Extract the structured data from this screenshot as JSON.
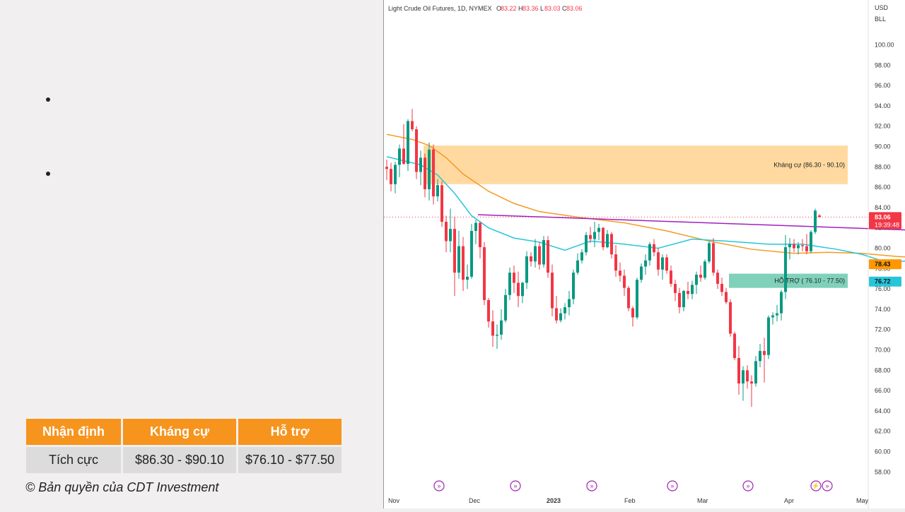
{
  "slide": {
    "table": {
      "headers": [
        "Nhận định",
        "Kháng cự",
        "Hỗ trợ"
      ],
      "row": [
        "Tích cực",
        "$86.30 - $90.10",
        "$76.10 - $77.50"
      ]
    },
    "copyright": "© Bản quyền của CDT Investment"
  },
  "chart_data": {
    "type": "candlestick",
    "title": "Light Crude Oil Futures, 1D, NYMEX",
    "ohlc_label": {
      "o": "O",
      "o_val": "83.22",
      "h": "H",
      "h_val": "83.36",
      "l": "L",
      "l_val": "83.03",
      "c": "C",
      "c_val": "83.06"
    },
    "currency": "USD",
    "unit": "BLL",
    "ylim": [
      56.5,
      103
    ],
    "y_ticks": [
      "58.00",
      "60.00",
      "62.00",
      "64.00",
      "66.00",
      "68.00",
      "70.00",
      "72.00",
      "74.00",
      "76.00",
      "78.00",
      "80.00",
      "82.00",
      "84.00",
      "86.00",
      "88.00",
      "90.00",
      "92.00",
      "94.00",
      "96.00",
      "98.00",
      "100.00"
    ],
    "x_labels": [
      "Nov",
      "Dec",
      "2023",
      "Feb",
      "Mar",
      "Apr",
      "May"
    ],
    "zones": [
      {
        "label": "Kháng cự (86.30 - 90.10)",
        "low": 86.3,
        "high": 90.1,
        "color": "#ffd9a0"
      },
      {
        "label": "HỖ TRỢ ( 76.10 - 77.50)",
        "low": 76.1,
        "high": 77.5,
        "color": "#7fd1b9"
      }
    ],
    "price_tags": [
      {
        "value": "83.06",
        "sub": "19:39:48",
        "level": 83.06,
        "color": "#f23645"
      },
      {
        "value": "78.43",
        "level": 78.43,
        "color": "#ff9800"
      },
      {
        "value": "76.72",
        "level": 76.72,
        "color": "#26c6da"
      }
    ],
    "trendline": {
      "color": "#a020c0",
      "points": [
        [
          18,
          83.3
        ],
        [
          156,
          81.3
        ]
      ]
    },
    "ma_slow": {
      "color": "#f59a23",
      "points": [
        [
          0,
          91.2
        ],
        [
          6,
          90.7
        ],
        [
          10,
          90.1
        ],
        [
          14,
          88.9
        ],
        [
          18,
          87.3
        ],
        [
          24,
          85.6
        ],
        [
          30,
          84.4
        ],
        [
          36,
          83.6
        ],
        [
          46,
          83.0
        ],
        [
          56,
          82.5
        ],
        [
          66,
          81.7
        ],
        [
          76,
          80.7
        ],
        [
          86,
          79.9
        ],
        [
          96,
          79.5
        ],
        [
          104,
          79.6
        ],
        [
          112,
          79.5
        ],
        [
          120,
          79.2
        ],
        [
          128,
          79.0
        ],
        [
          134,
          78.3
        ],
        [
          140,
          77.6
        ],
        [
          146,
          77.4
        ],
        [
          152,
          77.8
        ],
        [
          156,
          78.1
        ],
        [
          160,
          78.43
        ]
      ]
    },
    "ma_fast": {
      "color": "#26c6da",
      "points": [
        [
          0,
          89.0
        ],
        [
          4,
          88.6
        ],
        [
          8,
          88.2
        ],
        [
          12,
          87.2
        ],
        [
          16,
          85.4
        ],
        [
          20,
          83.2
        ],
        [
          24,
          82.0
        ],
        [
          30,
          81.0
        ],
        [
          36,
          80.6
        ],
        [
          42,
          79.8
        ],
        [
          48,
          80.7
        ],
        [
          56,
          80.4
        ],
        [
          64,
          80.0
        ],
        [
          72,
          80.9
        ],
        [
          80,
          80.7
        ],
        [
          90,
          80.4
        ],
        [
          98,
          80.4
        ],
        [
          106,
          79.9
        ],
        [
          112,
          79.4
        ],
        [
          118,
          78.6
        ],
        [
          124,
          78.8
        ],
        [
          130,
          78.7
        ],
        [
          134,
          77.8
        ],
        [
          140,
          76.5
        ],
        [
          146,
          75.6
        ],
        [
          150,
          75.0
        ],
        [
          154,
          75.4
        ],
        [
          158,
          76.2
        ],
        [
          160,
          76.72
        ]
      ]
    },
    "candles": [
      [
        88.0,
        88.7,
        86.7,
        87.8
      ],
      [
        87.8,
        88.4,
        85.6,
        86.3
      ],
      [
        86.3,
        88.5,
        85.4,
        88.2
      ],
      [
        88.2,
        90.2,
        87.0,
        89.8
      ],
      [
        89.8,
        92.2,
        88.2,
        88.3
      ],
      [
        88.3,
        92.7,
        87.6,
        92.5
      ],
      [
        92.5,
        93.7,
        91.5,
        91.7
      ],
      [
        91.7,
        92.0,
        86.8,
        87.5
      ],
      [
        87.5,
        89.6,
        86.2,
        88.9
      ],
      [
        88.9,
        89.3,
        85.0,
        85.8
      ],
      [
        85.8,
        90.4,
        84.7,
        89.7
      ],
      [
        89.7,
        90.2,
        84.3,
        85.1
      ],
      [
        85.1,
        86.8,
        84.6,
        86.2
      ],
      [
        86.2,
        86.6,
        82.1,
        82.6
      ],
      [
        82.6,
        83.2,
        79.6,
        80.7
      ],
      [
        80.7,
        83.9,
        79.6,
        81.9
      ],
      [
        81.9,
        83.1,
        75.3,
        77.6
      ],
      [
        77.6,
        81.7,
        77.0,
        80.2
      ],
      [
        80.2,
        81.1,
        75.8,
        76.9
      ],
      [
        76.9,
        78.4,
        76.0,
        77.2
      ],
      [
        77.2,
        82.4,
        77.0,
        81.7
      ],
      [
        81.7,
        82.8,
        80.4,
        82.5
      ],
      [
        82.5,
        82.6,
        79.0,
        80.1
      ],
      [
        80.1,
        80.6,
        74.4,
        74.9
      ],
      [
        74.9,
        75.1,
        72.2,
        72.8
      ],
      [
        72.8,
        73.9,
        70.3,
        71.4
      ],
      [
        71.4,
        72.5,
        70.1,
        71.5
      ],
      [
        71.5,
        74.0,
        71.0,
        72.9
      ],
      [
        72.9,
        76.0,
        72.7,
        75.4
      ],
      [
        75.4,
        78.1,
        74.9,
        77.6
      ],
      [
        77.6,
        78.3,
        75.6,
        76.6
      ],
      [
        76.6,
        77.7,
        74.2,
        75.3
      ],
      [
        75.3,
        76.7,
        74.6,
        76.6
      ],
      [
        76.6,
        79.7,
        76.0,
        79.2
      ],
      [
        79.2,
        79.6,
        78.2,
        78.7
      ],
      [
        78.7,
        80.9,
        78.1,
        80.2
      ],
      [
        80.2,
        80.6,
        77.9,
        78.4
      ],
      [
        78.4,
        81.2,
        78.1,
        80.8
      ],
      [
        80.8,
        81.2,
        77.1,
        77.6
      ],
      [
        77.6,
        78.4,
        73.3,
        74.1
      ],
      [
        74.1,
        75.3,
        72.6,
        72.9
      ],
      [
        72.9,
        74.1,
        72.7,
        73.6
      ],
      [
        73.6,
        74.6,
        73.0,
        74.2
      ],
      [
        74.2,
        75.8,
        73.4,
        75.0
      ],
      [
        75.0,
        77.9,
        74.5,
        77.6
      ],
      [
        77.6,
        79.5,
        77.4,
        78.8
      ],
      [
        78.8,
        79.9,
        78.5,
        79.6
      ],
      [
        79.6,
        81.6,
        79.3,
        81.3
      ],
      [
        81.3,
        82.1,
        80.5,
        80.9
      ],
      [
        80.9,
        82.6,
        80.1,
        81.6
      ],
      [
        81.6,
        82.4,
        80.8,
        82.0
      ],
      [
        82.0,
        82.1,
        79.8,
        80.1
      ],
      [
        80.1,
        81.8,
        80.0,
        81.4
      ],
      [
        81.4,
        81.6,
        79.0,
        79.4
      ],
      [
        79.4,
        80.3,
        77.2,
        77.8
      ],
      [
        77.8,
        78.6,
        76.7,
        77.3
      ],
      [
        77.3,
        77.9,
        75.3,
        76.1
      ],
      [
        76.1,
        76.3,
        73.8,
        74.1
      ],
      [
        74.1,
        74.3,
        72.3,
        73.2
      ],
      [
        73.2,
        77.1,
        73.0,
        76.9
      ],
      [
        76.9,
        78.5,
        76.6,
        78.2
      ],
      [
        78.2,
        79.4,
        77.4,
        78.8
      ],
      [
        78.8,
        80.6,
        78.3,
        80.4
      ],
      [
        80.4,
        80.9,
        79.2,
        79.6
      ],
      [
        79.6,
        80.0,
        77.3,
        77.9
      ],
      [
        77.9,
        79.4,
        76.9,
        79.1
      ],
      [
        79.1,
        79.4,
        77.5,
        77.8
      ],
      [
        77.8,
        78.3,
        76.2,
        76.5
      ],
      [
        76.5,
        76.9,
        74.8,
        75.6
      ],
      [
        75.6,
        76.1,
        73.6,
        74.2
      ],
      [
        74.2,
        75.9,
        73.8,
        75.8
      ],
      [
        75.8,
        76.7,
        75.0,
        75.5
      ],
      [
        75.5,
        76.8,
        75.0,
        76.4
      ],
      [
        76.4,
        77.7,
        75.5,
        77.4
      ],
      [
        77.4,
        78.3,
        76.7,
        77.1
      ],
      [
        77.1,
        78.9,
        76.9,
        78.7
      ],
      [
        78.7,
        80.7,
        78.5,
        80.5
      ],
      [
        80.5,
        81.0,
        77.3,
        77.6
      ],
      [
        77.6,
        77.9,
        76.0,
        76.5
      ],
      [
        76.5,
        77.1,
        75.3,
        75.7
      ],
      [
        75.7,
        76.1,
        74.5,
        74.7
      ],
      [
        74.7,
        75.0,
        71.3,
        71.6
      ],
      [
        71.6,
        71.8,
        69.0,
        69.2
      ],
      [
        69.2,
        70.4,
        65.6,
        66.7
      ],
      [
        66.7,
        68.4,
        65.0,
        68.0
      ],
      [
        68.0,
        68.5,
        66.2,
        66.9
      ],
      [
        66.9,
        67.5,
        64.4,
        66.7
      ],
      [
        66.7,
        69.4,
        66.4,
        68.9
      ],
      [
        68.9,
        70.6,
        68.3,
        69.9
      ],
      [
        69.9,
        71.2,
        66.8,
        69.5
      ],
      [
        69.5,
        73.4,
        69.1,
        73.2
      ],
      [
        73.2,
        73.7,
        72.5,
        73.4
      ],
      [
        73.4,
        74.4,
        72.8,
        73.6
      ],
      [
        73.6,
        75.9,
        72.9,
        75.7
      ],
      [
        75.7,
        81.3,
        75.0,
        80.1
      ],
      [
        80.1,
        81.0,
        78.9,
        80.4
      ],
      [
        80.4,
        80.9,
        79.6,
        80.0
      ],
      [
        80.0,
        80.6,
        79.4,
        80.3
      ],
      [
        80.3,
        80.9,
        79.7,
        80.2
      ],
      [
        80.2,
        81.4,
        79.4,
        79.7
      ],
      [
        79.7,
        81.8,
        79.5,
        81.6
      ],
      [
        81.6,
        83.9,
        81.4,
        83.7
      ],
      [
        83.22,
        83.36,
        83.03,
        83.06
      ]
    ],
    "event_icons": [
      "»",
      "»",
      "»",
      "»",
      "»",
      "⚡»"
    ]
  }
}
